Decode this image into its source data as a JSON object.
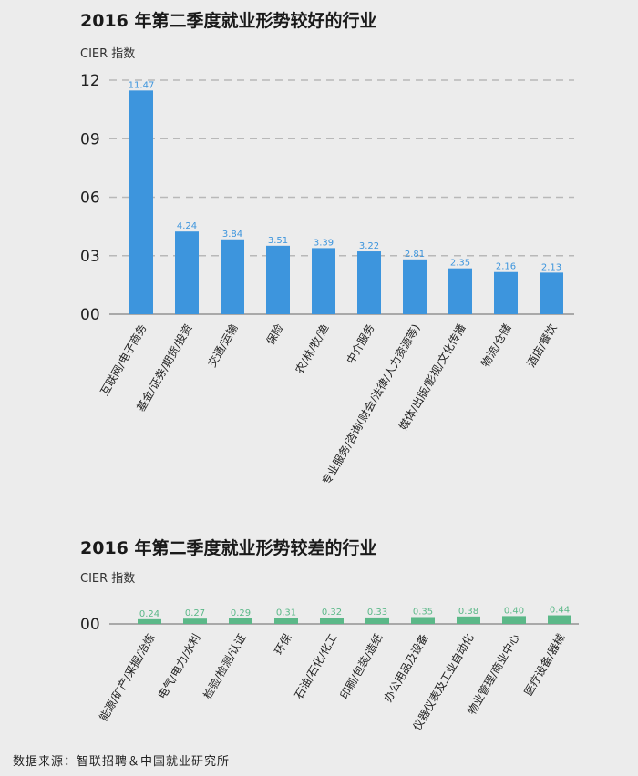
{
  "source": "数据来源：智联招聘＆中国就业研究所",
  "chart_data": [
    {
      "type": "bar",
      "title": "2016 年第二季度就业形势较好的行业",
      "ylabel": "CIER 指数",
      "yticks": [
        "00",
        "03",
        "06",
        "09",
        "12"
      ],
      "ylim": [
        0,
        12
      ],
      "grid": true,
      "color": "#3d95dd",
      "categories": [
        "互联网/电子商务",
        "基金/证券/期货/投资",
        "交通/运输",
        "保险",
        "农/林/牧/渔",
        "中介服务",
        "专业服务/咨询(财会/法律/人力资源等)",
        "媒体/出版/影视/文化传播",
        "物流/仓储",
        "酒店/餐饮"
      ],
      "values": [
        11.47,
        4.24,
        3.84,
        3.51,
        3.39,
        3.22,
        2.81,
        2.35,
        2.16,
        2.13
      ],
      "labels": [
        "11.47",
        "4.24",
        "3.84",
        "3.51",
        "3.39",
        "3.22",
        "2.81",
        "2.35",
        "2.16",
        "2.13"
      ]
    },
    {
      "type": "bar",
      "title": "2016 年第二季度就业形势较差的行业",
      "ylabel": "CIER 指数",
      "yticks": [
        "00"
      ],
      "ylim": [
        0,
        12
      ],
      "grid": false,
      "color": "#5bb888",
      "categories": [
        "能源/矿产/采掘/冶炼",
        "电气/电力/水利",
        "检验/检测/认证",
        "环保",
        "石油/石化/化工",
        "印刷/包装/造纸",
        "办公用品及设备",
        "仪器仪表及工业自动化",
        "物业管理/商业中心",
        "医疗设备/器械"
      ],
      "values": [
        0.24,
        0.27,
        0.29,
        0.31,
        0.32,
        0.33,
        0.35,
        0.38,
        0.4,
        0.44
      ],
      "labels": [
        "0.24",
        "0.27",
        "0.29",
        "0.31",
        "0.32",
        "0.33",
        "0.35",
        "0.38",
        "0.40",
        "0.44"
      ]
    }
  ]
}
